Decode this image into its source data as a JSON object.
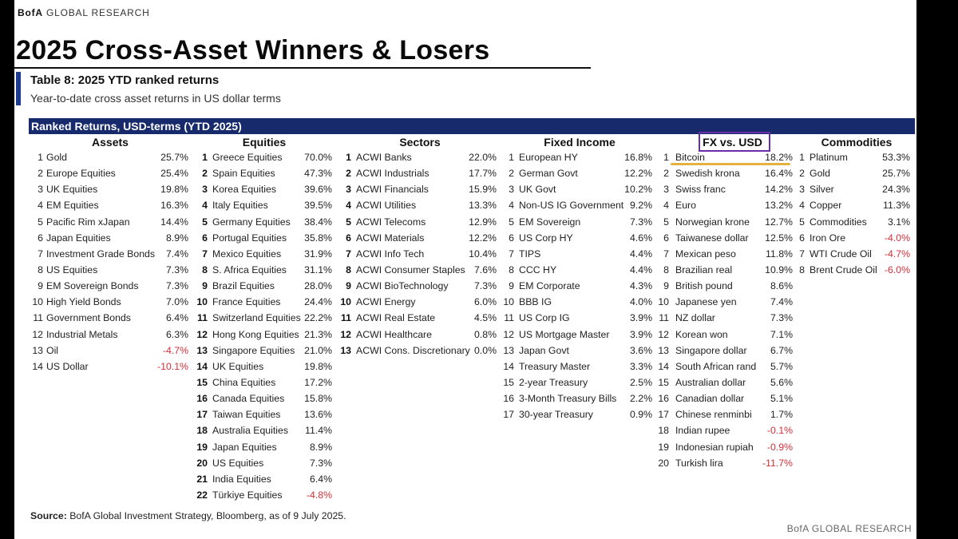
{
  "brand": {
    "name_prefix": "BofA",
    "name_suffix": " GLOBAL RESEARCH",
    "footer": "BofA GLOBAL RESEARCH"
  },
  "headline": "2025 Cross-Asset Winners & Losers",
  "table": {
    "title": "Table 8: 2025 YTD ranked returns",
    "subtitle": "Year-to-date cross asset returns in US dollar terms",
    "band_label": "Ranked Returns, USD-terms (YTD 2025)"
  },
  "colors": {
    "band": "#162a6c",
    "accent": "#1c3a8e",
    "negative": "#d2303a",
    "highlight": "#e3a82a",
    "fx_box": "#6a2fa8"
  },
  "columns": [
    {
      "header": "Assets",
      "bold_rank": false,
      "rows": [
        {
          "rank": "1",
          "name": "Gold",
          "value": "25.7%",
          "neg": false
        },
        {
          "rank": "2",
          "name": "Europe Equities",
          "value": "25.4%",
          "neg": false
        },
        {
          "rank": "3",
          "name": "UK Equities",
          "value": "19.8%",
          "neg": false
        },
        {
          "rank": "4",
          "name": "EM Equities",
          "value": "16.3%",
          "neg": false
        },
        {
          "rank": "5",
          "name": "Pacific Rim xJapan",
          "value": "14.4%",
          "neg": false
        },
        {
          "rank": "6",
          "name": "Japan Equities",
          "value": "8.9%",
          "neg": false
        },
        {
          "rank": "7",
          "name": "Investment Grade Bonds",
          "value": "7.4%",
          "neg": false
        },
        {
          "rank": "8",
          "name": "US Equities",
          "value": "7.3%",
          "neg": false
        },
        {
          "rank": "9",
          "name": "EM Sovereign Bonds",
          "value": "7.3%",
          "neg": false
        },
        {
          "rank": "10",
          "name": "High Yield Bonds",
          "value": "7.0%",
          "neg": false
        },
        {
          "rank": "11",
          "name": "Government Bonds",
          "value": "6.4%",
          "neg": false
        },
        {
          "rank": "12",
          "name": "Industrial Metals",
          "value": "6.3%",
          "neg": false
        },
        {
          "rank": "13",
          "name": "Oil",
          "value": "-4.7%",
          "neg": true
        },
        {
          "rank": "14",
          "name": "US Dollar",
          "value": "-10.1%",
          "neg": true
        }
      ]
    },
    {
      "header": "Equities",
      "bold_rank": true,
      "rows": [
        {
          "rank": "1",
          "name": "Greece Equities",
          "value": "70.0%",
          "neg": false
        },
        {
          "rank": "2",
          "name": "Spain Equities",
          "value": "47.3%",
          "neg": false
        },
        {
          "rank": "3",
          "name": "Korea Equities",
          "value": "39.6%",
          "neg": false
        },
        {
          "rank": "4",
          "name": "Italy Equities",
          "value": "39.5%",
          "neg": false
        },
        {
          "rank": "5",
          "name": "Germany Equities",
          "value": "38.4%",
          "neg": false
        },
        {
          "rank": "6",
          "name": "Portugal Equities",
          "value": "35.8%",
          "neg": false
        },
        {
          "rank": "7",
          "name": "Mexico Equities",
          "value": "31.9%",
          "neg": false
        },
        {
          "rank": "8",
          "name": "S. Africa Equities",
          "value": "31.1%",
          "neg": false
        },
        {
          "rank": "9",
          "name": "Brazil Equities",
          "value": "28.0%",
          "neg": false
        },
        {
          "rank": "10",
          "name": "France Equities",
          "value": "24.4%",
          "neg": false
        },
        {
          "rank": "11",
          "name": "Switzerland Equities",
          "value": "22.2%",
          "neg": false
        },
        {
          "rank": "12",
          "name": "Hong Kong Equities",
          "value": "21.3%",
          "neg": false
        },
        {
          "rank": "13",
          "name": "Singapore Equities",
          "value": "21.0%",
          "neg": false
        },
        {
          "rank": "14",
          "name": "UK Equities",
          "value": "19.8%",
          "neg": false
        },
        {
          "rank": "15",
          "name": "China Equities",
          "value": "17.2%",
          "neg": false
        },
        {
          "rank": "16",
          "name": "Canada Equities",
          "value": "15.8%",
          "neg": false
        },
        {
          "rank": "17",
          "name": "Taiwan Equities",
          "value": "13.6%",
          "neg": false
        },
        {
          "rank": "18",
          "name": "Australia Equities",
          "value": "11.4%",
          "neg": false
        },
        {
          "rank": "19",
          "name": "Japan Equities",
          "value": "8.9%",
          "neg": false
        },
        {
          "rank": "20",
          "name": "US Equities",
          "value": "7.3%",
          "neg": false
        },
        {
          "rank": "21",
          "name": "India Equities",
          "value": "6.4%",
          "neg": false
        },
        {
          "rank": "22",
          "name": "Türkiye Equities",
          "value": "-4.8%",
          "neg": true
        }
      ]
    },
    {
      "header": "Sectors",
      "bold_rank": true,
      "rows": [
        {
          "rank": "1",
          "name": "ACWI Banks",
          "value": "22.0%",
          "neg": false
        },
        {
          "rank": "2",
          "name": "ACWI Industrials",
          "value": "17.7%",
          "neg": false
        },
        {
          "rank": "3",
          "name": "ACWI Financials",
          "value": "15.9%",
          "neg": false
        },
        {
          "rank": "4",
          "name": "ACWI Utilities",
          "value": "13.3%",
          "neg": false
        },
        {
          "rank": "5",
          "name": "ACWI Telecoms",
          "value": "12.9%",
          "neg": false
        },
        {
          "rank": "6",
          "name": "ACWI Materials",
          "value": "12.2%",
          "neg": false
        },
        {
          "rank": "7",
          "name": "ACWI Info Tech",
          "value": "10.4%",
          "neg": false
        },
        {
          "rank": "8",
          "name": "ACWI Consumer Staples",
          "value": "7.6%",
          "neg": false
        },
        {
          "rank": "9",
          "name": "ACWI BioTechnology",
          "value": "7.3%",
          "neg": false
        },
        {
          "rank": "10",
          "name": "ACWI Energy",
          "value": "6.0%",
          "neg": false
        },
        {
          "rank": "11",
          "name": "ACWI Real Estate",
          "value": "4.5%",
          "neg": false
        },
        {
          "rank": "12",
          "name": "ACWI Healthcare",
          "value": "0.8%",
          "neg": false
        },
        {
          "rank": "13",
          "name": "ACWI Cons. Discretionary",
          "value": "0.0%",
          "neg": false
        }
      ]
    },
    {
      "header": "Fixed Income",
      "bold_rank": false,
      "rows": [
        {
          "rank": "1",
          "name": "European HY",
          "value": "16.8%",
          "neg": false
        },
        {
          "rank": "2",
          "name": "German Govt",
          "value": "12.2%",
          "neg": false
        },
        {
          "rank": "3",
          "name": "UK Govt",
          "value": "10.2%",
          "neg": false
        },
        {
          "rank": "4",
          "name": "Non-US IG Government",
          "value": "9.2%",
          "neg": false
        },
        {
          "rank": "5",
          "name": "EM Sovereign",
          "value": "7.3%",
          "neg": false
        },
        {
          "rank": "6",
          "name": "US Corp HY",
          "value": "4.6%",
          "neg": false
        },
        {
          "rank": "7",
          "name": "TIPS",
          "value": "4.4%",
          "neg": false
        },
        {
          "rank": "8",
          "name": "CCC HY",
          "value": "4.4%",
          "neg": false
        },
        {
          "rank": "9",
          "name": "EM Corporate",
          "value": "4.3%",
          "neg": false
        },
        {
          "rank": "10",
          "name": "BBB IG",
          "value": "4.0%",
          "neg": false
        },
        {
          "rank": "11",
          "name": "US Corp IG",
          "value": "3.9%",
          "neg": false
        },
        {
          "rank": "12",
          "name": "US Mortgage Master",
          "value": "3.9%",
          "neg": false
        },
        {
          "rank": "13",
          "name": "Japan Govt",
          "value": "3.6%",
          "neg": false
        },
        {
          "rank": "14",
          "name": "Treasury Master",
          "value": "3.3%",
          "neg": false
        },
        {
          "rank": "15",
          "name": "2-year Treasury",
          "value": "2.5%",
          "neg": false
        },
        {
          "rank": "16",
          "name": "3-Month Treasury Bills",
          "value": "2.2%",
          "neg": false
        },
        {
          "rank": "17",
          "name": "30-year Treasury",
          "value": "0.9%",
          "neg": false
        }
      ]
    },
    {
      "header": "FX vs. USD",
      "bold_rank": false,
      "rows": [
        {
          "rank": "1",
          "name": "Bitcoin",
          "value": "18.2%",
          "neg": false
        },
        {
          "rank": "2",
          "name": "Swedish krona",
          "value": "16.4%",
          "neg": false
        },
        {
          "rank": "3",
          "name": "Swiss franc",
          "value": "14.2%",
          "neg": false
        },
        {
          "rank": "4",
          "name": "Euro",
          "value": "13.2%",
          "neg": false
        },
        {
          "rank": "5",
          "name": "Norwegian krone",
          "value": "12.7%",
          "neg": false
        },
        {
          "rank": "6",
          "name": "Taiwanese dollar",
          "value": "12.5%",
          "neg": false
        },
        {
          "rank": "7",
          "name": "Mexican peso",
          "value": "11.8%",
          "neg": false
        },
        {
          "rank": "8",
          "name": "Brazilian real",
          "value": "10.9%",
          "neg": false
        },
        {
          "rank": "9",
          "name": "British pound",
          "value": "8.6%",
          "neg": false
        },
        {
          "rank": "10",
          "name": "Japanese yen",
          "value": "7.4%",
          "neg": false
        },
        {
          "rank": "11",
          "name": "NZ dollar",
          "value": "7.3%",
          "neg": false
        },
        {
          "rank": "12",
          "name": "Korean won",
          "value": "7.1%",
          "neg": false
        },
        {
          "rank": "13",
          "name": "Singapore dollar",
          "value": "6.7%",
          "neg": false
        },
        {
          "rank": "14",
          "name": "South African rand",
          "value": "5.7%",
          "neg": false
        },
        {
          "rank": "15",
          "name": "Australian dollar",
          "value": "5.6%",
          "neg": false
        },
        {
          "rank": "16",
          "name": "Canadian dollar",
          "value": "5.1%",
          "neg": false
        },
        {
          "rank": "17",
          "name": "Chinese renminbi",
          "value": "1.7%",
          "neg": false
        },
        {
          "rank": "18",
          "name": "Indian rupee",
          "value": "-0.1%",
          "neg": true
        },
        {
          "rank": "19",
          "name": "Indonesian rupiah",
          "value": "-0.9%",
          "neg": true
        },
        {
          "rank": "20",
          "name": "Turkish lira",
          "value": "-11.7%",
          "neg": true
        }
      ]
    },
    {
      "header": "Commodities",
      "bold_rank": false,
      "rows": [
        {
          "rank": "1",
          "name": "Platinum",
          "value": "53.3%",
          "neg": false
        },
        {
          "rank": "2",
          "name": "Gold",
          "value": "25.7%",
          "neg": false
        },
        {
          "rank": "3",
          "name": "Silver",
          "value": "24.3%",
          "neg": false
        },
        {
          "rank": "4",
          "name": "Copper",
          "value": "11.3%",
          "neg": false
        },
        {
          "rank": "5",
          "name": "Commodities",
          "value": "3.1%",
          "neg": false
        },
        {
          "rank": "6",
          "name": "Iron Ore",
          "value": "-4.0%",
          "neg": true
        },
        {
          "rank": "7",
          "name": "WTI Crude Oil",
          "value": "-4.7%",
          "neg": true
        },
        {
          "rank": "8",
          "name": "Brent Crude Oil",
          "value": "-6.0%",
          "neg": true
        }
      ]
    }
  ],
  "source": {
    "label": "Source:",
    "text": " BofA Global Investment Strategy, Bloomberg, as of 9 July 2025."
  }
}
